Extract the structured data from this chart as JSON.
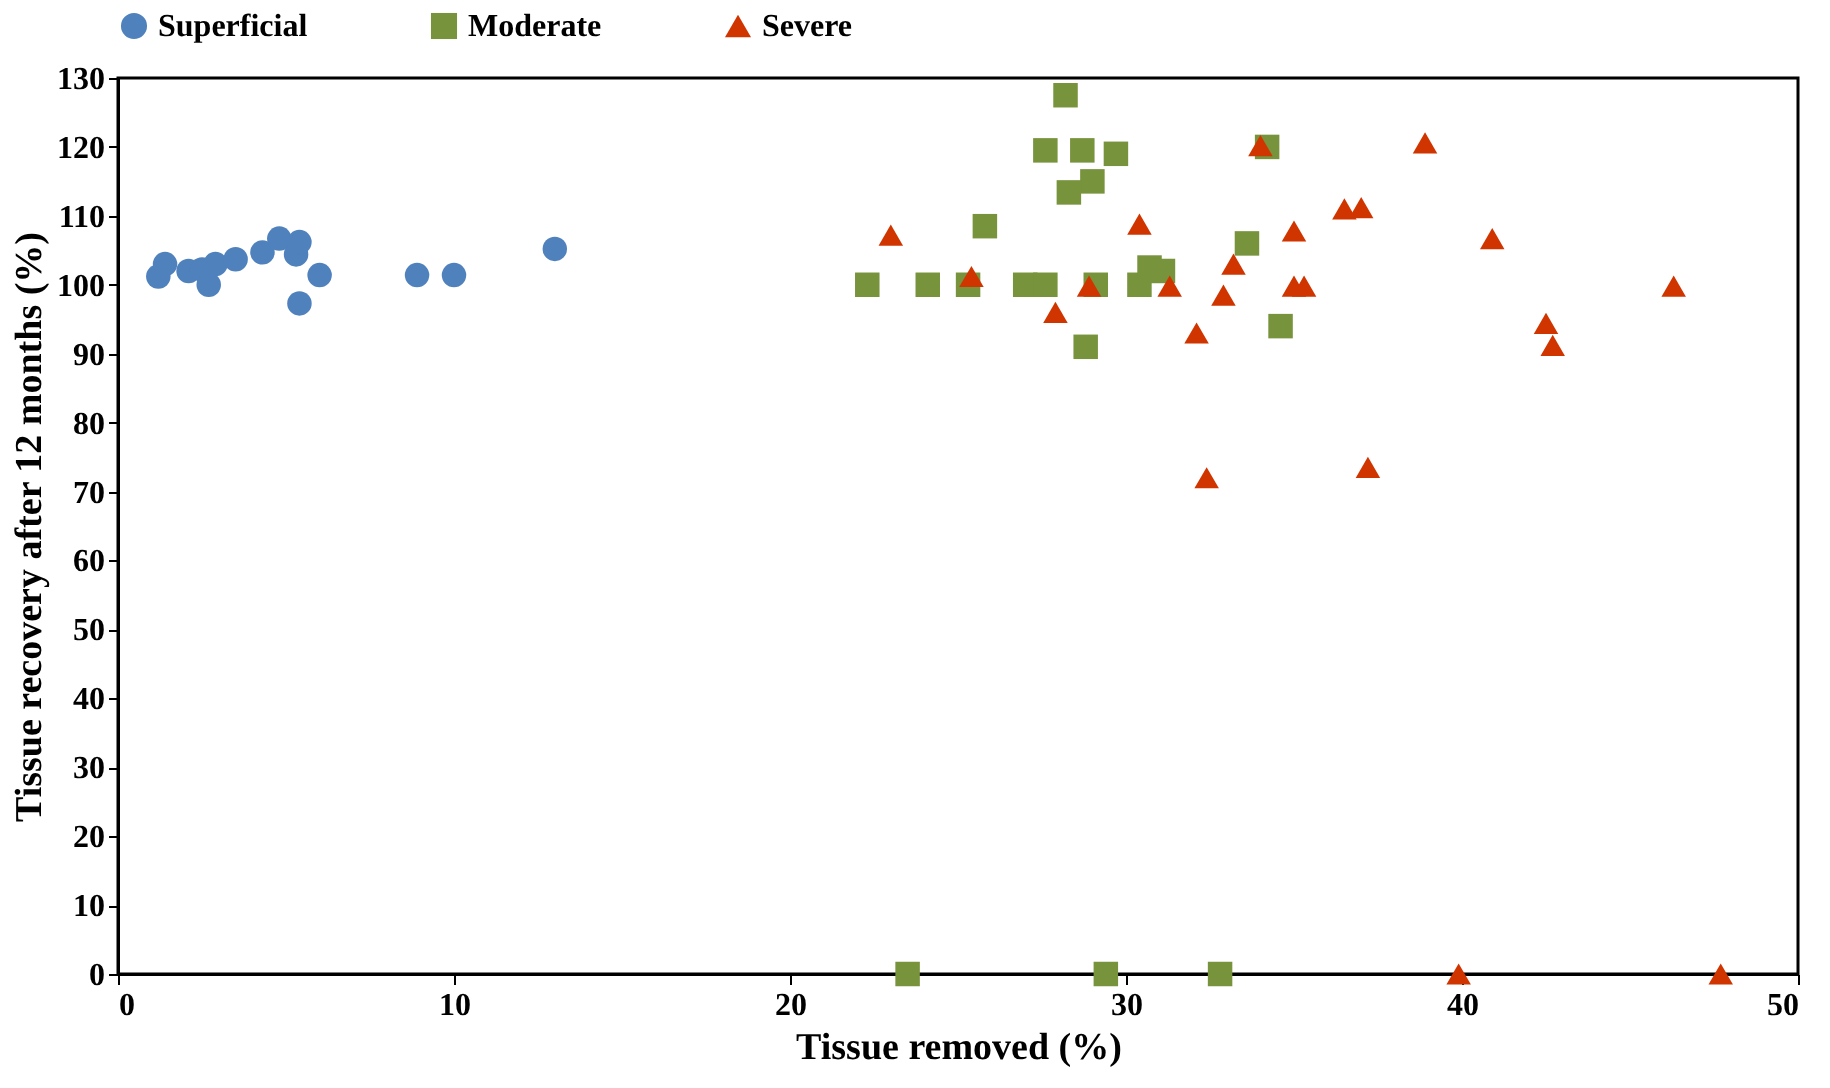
{
  "chart_data": {
    "type": "scatter",
    "xlabel": "Tissue removed (%)",
    "ylabel": "Tissue recovery after 12 months (%)",
    "xlim": [
      0,
      50
    ],
    "xticks": [
      0,
      10,
      20,
      30,
      40,
      50
    ],
    "ylim": [
      0,
      130
    ],
    "yticks": [
      0,
      10,
      20,
      30,
      40,
      50,
      60,
      70,
      80,
      90,
      100,
      110,
      120,
      130
    ],
    "grid": false,
    "legend": "top",
    "series": [
      {
        "name": "Superficial",
        "color": "#4f81bd",
        "marker": "circle",
        "x": [
          1.2,
          1.4,
          2.1,
          2.4,
          2.5,
          2.7,
          2.9,
          3.5,
          4.3,
          4.8,
          5.3,
          5.4,
          6.0,
          5.4,
          8.9,
          10.0,
          13.0
        ],
        "values": [
          101.2,
          103,
          102,
          null,
          102.2,
          100,
          103,
          103.7,
          104.7,
          106.7,
          104.4,
          106.2,
          101.4,
          97.3,
          101.4,
          101.4,
          105.2
        ]
      },
      {
        "name": "Moderate",
        "color": "#77933c",
        "marker": "square",
        "x": [
          22.3,
          24.1,
          25.3,
          26.7,
          27.0,
          27.6,
          25.8,
          28.2,
          27.6,
          28.7,
          29.7,
          29.0,
          28.3,
          29.1,
          28.8,
          30.4,
          30.7,
          31.1,
          33.6,
          34.2,
          34.6,
          23.5,
          29.4,
          32.8
        ],
        "values": [
          100,
          100,
          100,
          null,
          100,
          100,
          108.5,
          127.5,
          119.5,
          119.5,
          119,
          115,
          113.4,
          100,
          91,
          100,
          102.5,
          102,
          106,
          120,
          94,
          0,
          0,
          0
        ]
      },
      {
        "name": "Severe",
        "color": "#d03500",
        "marker": "triangle",
        "x": [
          23.0,
          25.4,
          27.9,
          28.9,
          30.4,
          31.3,
          32.1,
          33.2,
          32.9,
          32.4,
          34.0,
          35.0,
          35.0,
          35.3,
          36.5,
          37.0,
          37.2,
          38.9,
          40.9,
          42.5,
          42.7,
          46.3,
          39.9,
          47.7
        ],
        "values": [
          107.2,
          101.2,
          96,
          99.8,
          108.8,
          99.8,
          93,
          103,
          98.5,
          72,
          120.2,
          107.8,
          99.8,
          99.8,
          111,
          111.2,
          73.5,
          120.6,
          106.7,
          94.4,
          91.2,
          99.8,
          0,
          0
        ]
      }
    ]
  }
}
